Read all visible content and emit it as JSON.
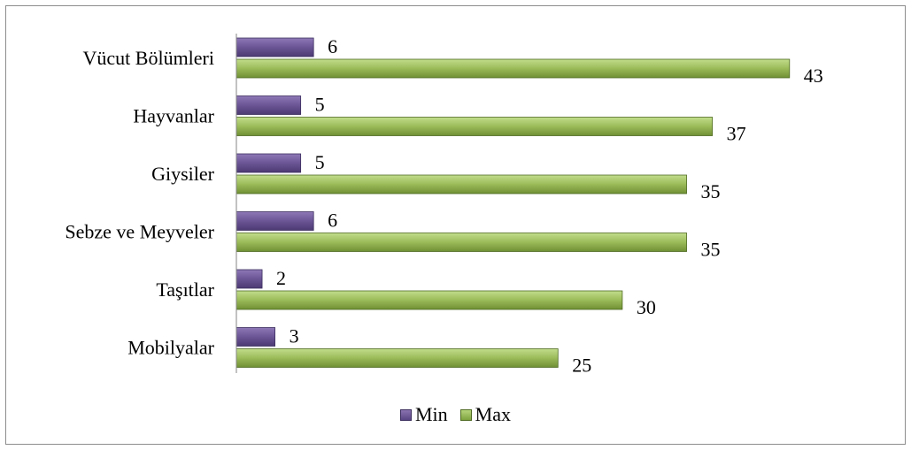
{
  "chart_data": {
    "type": "bar",
    "orientation": "horizontal",
    "categories": [
      "Vücut Bölümleri",
      "Hayvanlar",
      "Giysiler",
      "Sebze ve Meyveler",
      "Taşıtlar",
      "Mobilyalar"
    ],
    "series": [
      {
        "name": "Min",
        "values": [
          6,
          5,
          5,
          6,
          2,
          3
        ],
        "color": "#6b5594"
      },
      {
        "name": "Max",
        "values": [
          43,
          37,
          35,
          35,
          30,
          25
        ],
        "color": "#9bbb59"
      }
    ],
    "title": "",
    "xlabel": "",
    "ylabel": "",
    "xlim": [
      0,
      43
    ],
    "grid": false,
    "legend": "bottom"
  }
}
